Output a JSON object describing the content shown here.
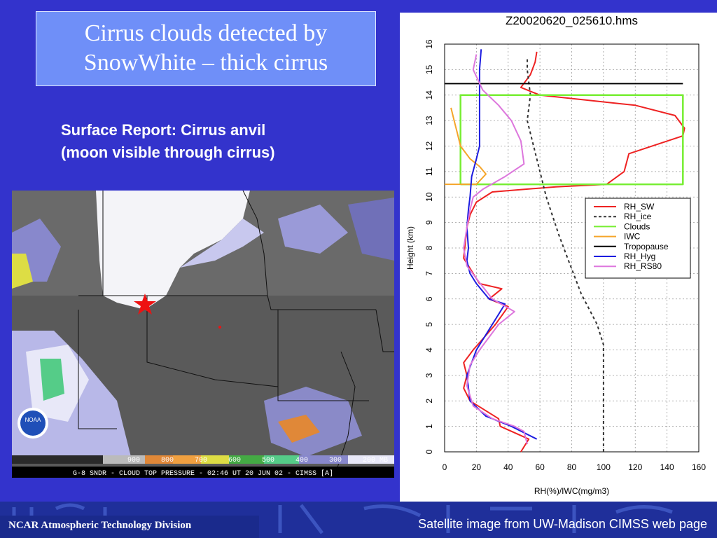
{
  "slide": {
    "title_line1": "Cirrus clouds detected by",
    "title_line2": "SnowWhite – thick cirrus",
    "surface_line1": "Surface Report: Cirrus anvil",
    "surface_line2": "(moon visible through cirrus)"
  },
  "satellite": {
    "logo_text": "NOAA",
    "scale_labels": [
      "900",
      "800",
      "700",
      "600",
      "500",
      "400",
      "300",
      "200 MB"
    ],
    "caption": "G-8 SNDR - CLOUD TOP PRESSURE - 02:46 UT 20 JUN 02 - CIMSS [A]"
  },
  "footer": {
    "left": "NCAR Atmospheric Technology Division",
    "right": "Satellite image from UW-Madison CIMSS web page"
  },
  "chart_data": {
    "type": "line",
    "title": "Z20020620_025610.hms",
    "xlabel": "RH(%)/IWC(mg/m3)",
    "ylabel": "Height (km)",
    "xlim": [
      0,
      160
    ],
    "ylim": [
      0,
      16
    ],
    "xticks": [
      0,
      20,
      40,
      60,
      80,
      100,
      120,
      140,
      160
    ],
    "yticks": [
      0,
      1,
      2,
      3,
      4,
      5,
      6,
      7,
      8,
      9,
      10,
      11,
      12,
      13,
      14,
      15,
      16
    ],
    "grid": true,
    "legend_position": "right",
    "series": [
      {
        "name": "RH_SW",
        "color": "#ee2222",
        "dash": "solid",
        "points": [
          [
            48,
            0
          ],
          [
            53,
            0.5
          ],
          [
            35,
            1
          ],
          [
            34,
            1.3
          ],
          [
            16,
            2
          ],
          [
            12,
            2.5
          ],
          [
            14,
            3
          ],
          [
            12,
            3.5
          ],
          [
            18,
            4
          ],
          [
            32,
            5
          ],
          [
            40,
            5.7
          ],
          [
            28,
            6
          ],
          [
            36,
            6.4
          ],
          [
            22,
            6.6
          ],
          [
            18,
            7
          ],
          [
            12,
            7.6
          ],
          [
            13,
            8.2
          ],
          [
            14,
            8.8
          ],
          [
            16,
            9.3
          ],
          [
            20,
            9.8
          ],
          [
            30,
            10.2
          ],
          [
            70,
            10.4
          ],
          [
            102,
            10.5
          ],
          [
            113,
            11
          ],
          [
            116,
            11.7
          ],
          [
            150,
            12.4
          ],
          [
            151,
            12.7
          ],
          [
            145,
            13.2
          ],
          [
            120,
            13.6
          ],
          [
            60,
            14
          ],
          [
            48,
            14.3
          ],
          [
            54,
            14.8
          ],
          [
            57,
            15.3
          ],
          [
            58,
            15.7
          ]
        ]
      },
      {
        "name": "RH_ice",
        "color": "#333333",
        "dash": "dashed",
        "points": [
          [
            100,
            0
          ],
          [
            100,
            4.2
          ],
          [
            96,
            5
          ],
          [
            86,
            6.2
          ],
          [
            78,
            7.5
          ],
          [
            72,
            8.5
          ],
          [
            64,
            10
          ],
          [
            58,
            11.5
          ],
          [
            52,
            13
          ],
          [
            54,
            14
          ],
          [
            52,
            15
          ],
          [
            52,
            15.5
          ]
        ]
      },
      {
        "name": "Clouds",
        "color": "#77ee33",
        "dash": "solid",
        "points": [
          [
            10,
            10.5
          ],
          [
            150,
            10.5
          ],
          [
            150,
            14
          ],
          [
            10,
            14
          ],
          [
            10,
            10.5
          ]
        ]
      },
      {
        "name": "IWC",
        "color": "#f5a52a",
        "dash": "solid",
        "points": [
          [
            0,
            10.5
          ],
          [
            20,
            10.5
          ],
          [
            26,
            10.9
          ],
          [
            22,
            11.2
          ],
          [
            16,
            11.5
          ],
          [
            10,
            12
          ],
          [
            8,
            12.5
          ],
          [
            6,
            13
          ],
          [
            4,
            13.5
          ]
        ]
      },
      {
        "name": "Tropopause",
        "color": "#000000",
        "dash": "solid",
        "points": [
          [
            0,
            14.45
          ],
          [
            150,
            14.45
          ]
        ]
      },
      {
        "name": "RH_Hyg",
        "color": "#1c1ce0",
        "dash": "solid",
        "points": [
          [
            58,
            0.5
          ],
          [
            42,
            1
          ],
          [
            26,
            1.4
          ],
          [
            16,
            2
          ],
          [
            14,
            3
          ],
          [
            20,
            4
          ],
          [
            30,
            5
          ],
          [
            38,
            5.8
          ],
          [
            28,
            6
          ],
          [
            20,
            6.6
          ],
          [
            16,
            7
          ],
          [
            14,
            7.5
          ],
          [
            15,
            8
          ],
          [
            14,
            8.8
          ],
          [
            15,
            9.5
          ],
          [
            16,
            10
          ],
          [
            17,
            10.8
          ],
          [
            20,
            11.5
          ],
          [
            22,
            12
          ],
          [
            22,
            13
          ],
          [
            22,
            14
          ],
          [
            22,
            15
          ],
          [
            23,
            15.8
          ]
        ]
      },
      {
        "name": "RH_RS80",
        "color": "#dd77dd",
        "dash": "solid",
        "points": [
          [
            52,
            0.3
          ],
          [
            50,
            0.8
          ],
          [
            44,
            1
          ],
          [
            30,
            1.3
          ],
          [
            18,
            1.8
          ],
          [
            14,
            2.6
          ],
          [
            16,
            3.4
          ],
          [
            22,
            4
          ],
          [
            34,
            5
          ],
          [
            44,
            5.5
          ],
          [
            30,
            6
          ],
          [
            20,
            6.8
          ],
          [
            14,
            7.3
          ],
          [
            12,
            8
          ],
          [
            14,
            8.8
          ],
          [
            16,
            9.5
          ],
          [
            18,
            10
          ],
          [
            24,
            10.3
          ],
          [
            38,
            10.8
          ],
          [
            50,
            11.3
          ],
          [
            48,
            12.2
          ],
          [
            42,
            13
          ],
          [
            34,
            13.6
          ],
          [
            24,
            14.2
          ],
          [
            18,
            15
          ],
          [
            20,
            15.6
          ]
        ]
      }
    ]
  }
}
